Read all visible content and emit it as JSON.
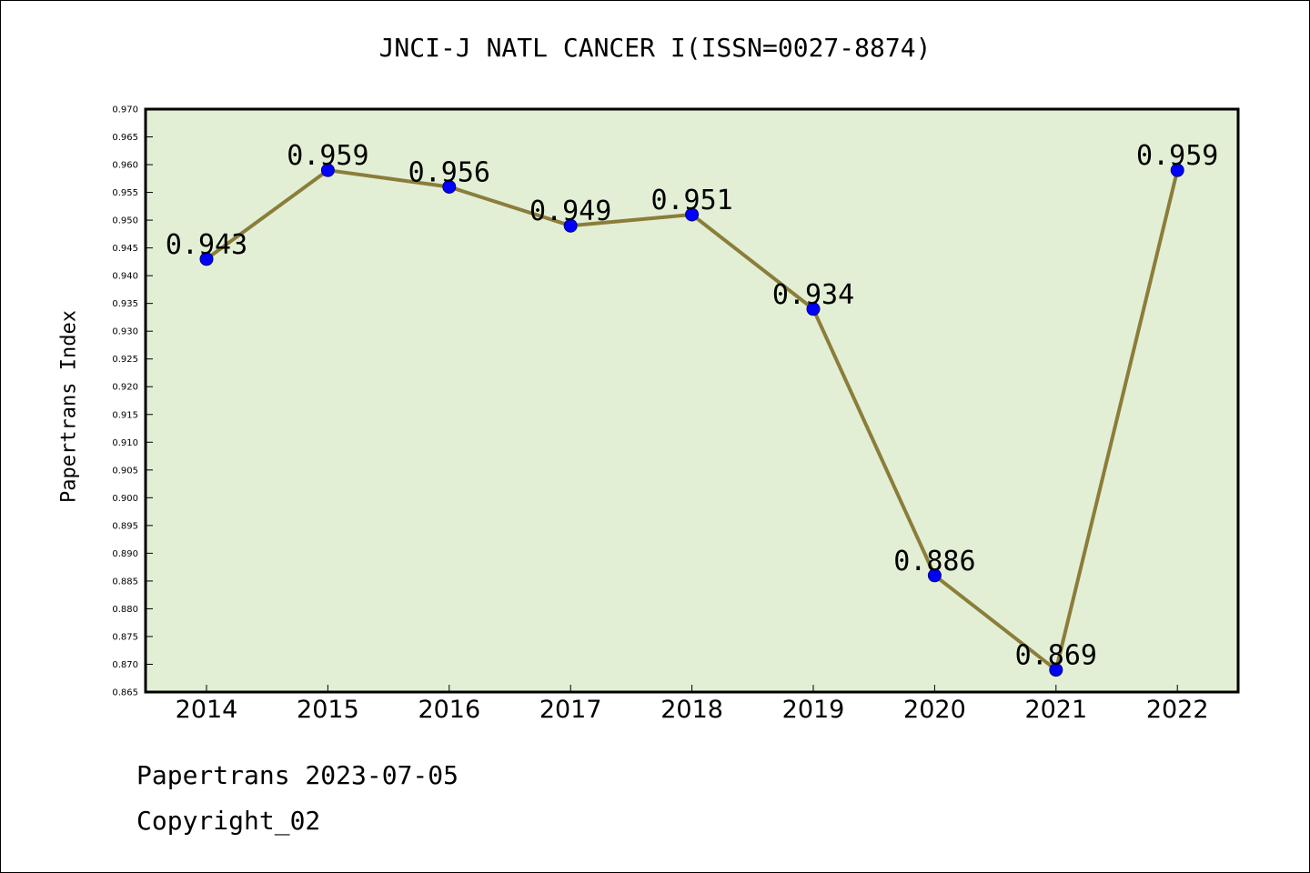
{
  "chart_data": {
    "type": "line",
    "title": "JNCI-J NATL CANCER I(ISSN=0027-8874)",
    "xlabel": "",
    "ylabel": "Papertrans Index",
    "categories": [
      "2014",
      "2015",
      "2016",
      "2017",
      "2018",
      "2019",
      "2020",
      "2021",
      "2022"
    ],
    "values": [
      0.943,
      0.959,
      0.956,
      0.949,
      0.951,
      0.934,
      0.886,
      0.869,
      0.959
    ],
    "data_labels": [
      "0.943",
      "0.959",
      "0.956",
      "0.949",
      "0.951",
      "0.934",
      "0.886",
      "0.869",
      "0.959"
    ],
    "ylim": [
      0.865,
      0.97
    ],
    "ytick_step": 0.005,
    "yticks": [
      "0.865",
      "0.870",
      "0.875",
      "0.880",
      "0.885",
      "0.890",
      "0.895",
      "0.900",
      "0.905",
      "0.910",
      "0.915",
      "0.920",
      "0.925",
      "0.930",
      "0.935",
      "0.940",
      "0.945",
      "0.950",
      "0.955",
      "0.960",
      "0.965",
      "0.970"
    ],
    "grid": false,
    "legend": "none",
    "colors": {
      "plot_background": "#e2efd5",
      "line": "#8b7d3a",
      "marker": "#0000ff",
      "axis": "#000000"
    }
  },
  "footer": {
    "line1": "Papertrans 2023-07-05",
    "line2": "Copyright_02"
  }
}
